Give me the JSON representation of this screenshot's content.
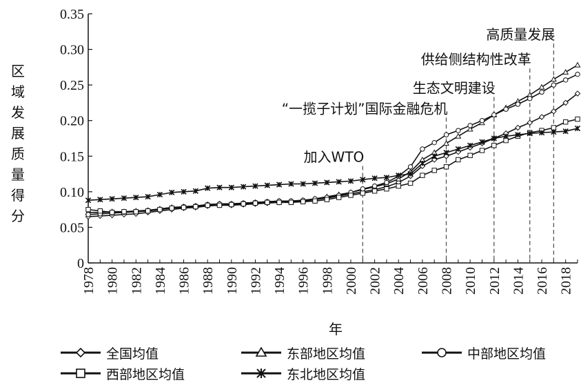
{
  "chart_data": {
    "type": "line",
    "title": "",
    "xlabel": "年",
    "ylabel": "区域发展质量得分",
    "xlim": [
      1978,
      2019
    ],
    "ylim": [
      0,
      0.35
    ],
    "x_ticks": [
      "1978",
      "1980",
      "1982",
      "1984",
      "1986",
      "1988",
      "1990",
      "1992",
      "1994",
      "1996",
      "1998",
      "2000",
      "2002",
      "2004",
      "2006",
      "2008",
      "2010",
      "2012",
      "2014",
      "2016",
      "2018"
    ],
    "y_ticks": [
      "0",
      "0.05",
      "0.10",
      "0.15",
      "0.20",
      "0.25",
      "0.30",
      "0.35"
    ],
    "x": [
      1978,
      1979,
      1980,
      1981,
      1982,
      1983,
      1984,
      1985,
      1986,
      1987,
      1988,
      1989,
      1990,
      1991,
      1992,
      1993,
      1994,
      1995,
      1996,
      1997,
      1998,
      1999,
      2000,
      2001,
      2002,
      2003,
      2004,
      2005,
      2006,
      2007,
      2008,
      2009,
      2010,
      2011,
      2012,
      2013,
      2014,
      2015,
      2016,
      2017,
      2018,
      2019
    ],
    "series": [
      {
        "name": "全国均值",
        "marker": "diamond",
        "values": [
          0.065,
          0.066,
          0.067,
          0.068,
          0.069,
          0.071,
          0.073,
          0.075,
          0.077,
          0.078,
          0.08,
          0.081,
          0.081,
          0.082,
          0.083,
          0.084,
          0.085,
          0.086,
          0.087,
          0.089,
          0.091,
          0.094,
          0.097,
          0.1,
          0.103,
          0.107,
          0.113,
          0.122,
          0.136,
          0.145,
          0.15,
          0.156,
          0.162,
          0.168,
          0.175,
          0.182,
          0.19,
          0.197,
          0.205,
          0.213,
          0.225,
          0.238
        ]
      },
      {
        "name": "东部地区均值",
        "marker": "triangle",
        "values": [
          0.071,
          0.071,
          0.072,
          0.072,
          0.073,
          0.074,
          0.076,
          0.078,
          0.079,
          0.08,
          0.082,
          0.083,
          0.083,
          0.084,
          0.085,
          0.086,
          0.087,
          0.087,
          0.088,
          0.09,
          0.093,
          0.096,
          0.099,
          0.103,
          0.107,
          0.111,
          0.118,
          0.128,
          0.145,
          0.155,
          0.168,
          0.178,
          0.188,
          0.197,
          0.208,
          0.218,
          0.227,
          0.236,
          0.247,
          0.258,
          0.268,
          0.278
        ]
      },
      {
        "name": "中部地区均值",
        "marker": "circle",
        "values": [
          0.068,
          0.069,
          0.07,
          0.071,
          0.072,
          0.073,
          0.075,
          0.077,
          0.079,
          0.08,
          0.082,
          0.083,
          0.083,
          0.084,
          0.085,
          0.086,
          0.087,
          0.087,
          0.088,
          0.09,
          0.092,
          0.095,
          0.099,
          0.104,
          0.108,
          0.113,
          0.122,
          0.135,
          0.16,
          0.169,
          0.18,
          0.186,
          0.193,
          0.2,
          0.208,
          0.216,
          0.223,
          0.231,
          0.24,
          0.25,
          0.257,
          0.265
        ]
      },
      {
        "name": "西部地区均值",
        "marker": "square",
        "values": [
          0.075,
          0.073,
          0.071,
          0.072,
          0.072,
          0.073,
          0.075,
          0.077,
          0.078,
          0.079,
          0.081,
          0.081,
          0.082,
          0.083,
          0.084,
          0.085,
          0.085,
          0.085,
          0.086,
          0.087,
          0.089,
          0.092,
          0.095,
          0.098,
          0.101,
          0.104,
          0.108,
          0.112,
          0.123,
          0.13,
          0.135,
          0.145,
          0.151,
          0.158,
          0.165,
          0.172,
          0.178,
          0.183,
          0.186,
          0.19,
          0.198,
          0.202
        ]
      },
      {
        "name": "东北地区均值",
        "marker": "star",
        "values": [
          0.088,
          0.089,
          0.09,
          0.091,
          0.092,
          0.093,
          0.096,
          0.099,
          0.1,
          0.101,
          0.105,
          0.106,
          0.106,
          0.107,
          0.108,
          0.109,
          0.11,
          0.111,
          0.111,
          0.112,
          0.113,
          0.114,
          0.115,
          0.117,
          0.119,
          0.12,
          0.123,
          0.125,
          0.14,
          0.15,
          0.155,
          0.16,
          0.165,
          0.17,
          0.175,
          0.178,
          0.18,
          0.182,
          0.183,
          0.184,
          0.185,
          0.189
        ]
      }
    ],
    "annotations": [
      {
        "text": "加入WTO",
        "x": 2001,
        "label_y": 0.142
      },
      {
        "text": "“一揽子计划”国际金融危机",
        "x": 2008,
        "label_y": 0.21
      },
      {
        "text": "生态文明建设",
        "x": 2012,
        "label_y": 0.239
      },
      {
        "text": "供给侧结构性改革",
        "x": 2015,
        "label_y": 0.279
      },
      {
        "text": "高质量发展",
        "x": 2017,
        "label_y": 0.314
      }
    ],
    "legend_position": "bottom",
    "grid": false
  },
  "legend": {
    "items": [
      "全国均值",
      "东部地区均值",
      "中部地区均值",
      "西部地区均值",
      "东北地区均值"
    ]
  }
}
